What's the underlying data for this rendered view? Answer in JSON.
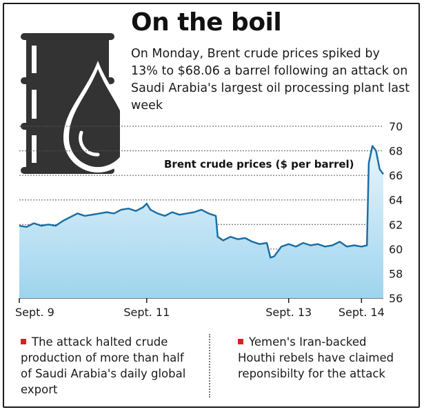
{
  "header": {
    "title": "On the boil",
    "subtitle": "On Monday, Brent crude prices spiked by 13% to $68.06 a barrel following an attack on Saudi Arabia's largest oil processing plant last week"
  },
  "chart_data": {
    "type": "area",
    "title": "Brent crude prices ($ per barrel)",
    "xlabel": "",
    "ylabel": "",
    "ylim": [
      56,
      70
    ],
    "y_ticks": [
      56,
      58,
      60,
      62,
      64,
      66,
      68,
      70
    ],
    "x_tick_labels": [
      "Sept. 9",
      "Sept. 11",
      "Sept. 13",
      "Sept. 14"
    ],
    "x_range": [
      0,
      100
    ],
    "x_tick_positions": [
      0,
      35,
      74,
      94
    ],
    "grid": true,
    "colors": {
      "line": "#1c6ea4",
      "area_top": "#e8f5fb",
      "area_bottom": "#9ed4ee",
      "grid": "#555555"
    },
    "series": [
      {
        "x": [
          0,
          2,
          4,
          6,
          8,
          10,
          12,
          14,
          16,
          18,
          20,
          22,
          24,
          26,
          28,
          30,
          32,
          34,
          35,
          36,
          38,
          40,
          42,
          44,
          46,
          48,
          50,
          52,
          54,
          54.5,
          56,
          58,
          60,
          62,
          64,
          66,
          68,
          69,
          70,
          72,
          74,
          76,
          78,
          80,
          82,
          84,
          86,
          88,
          90,
          92,
          94,
          95.5,
          96,
          97,
          98,
          99,
          100
        ],
        "y": [
          61.9,
          61.8,
          62.1,
          61.9,
          62.0,
          61.9,
          62.3,
          62.6,
          62.9,
          62.7,
          62.8,
          62.9,
          63.0,
          62.9,
          63.2,
          63.3,
          63.1,
          63.4,
          63.7,
          63.2,
          62.9,
          62.7,
          63.0,
          62.8,
          62.9,
          63.0,
          63.2,
          62.9,
          62.7,
          61.0,
          60.7,
          61.0,
          60.8,
          60.9,
          60.6,
          60.4,
          60.5,
          59.3,
          59.4,
          60.2,
          60.4,
          60.2,
          60.5,
          60.3,
          60.4,
          60.2,
          60.3,
          60.6,
          60.2,
          60.3,
          60.2,
          60.3,
          67.0,
          68.4,
          68.0,
          66.5,
          66.1
        ]
      }
    ]
  },
  "notes": {
    "left": "The attack halted crude production of more than half of Saudi Arabia's daily global export",
    "right": "Yemen's Iran-backed Houthi rebels have claimed reponsibilty for the attack"
  }
}
